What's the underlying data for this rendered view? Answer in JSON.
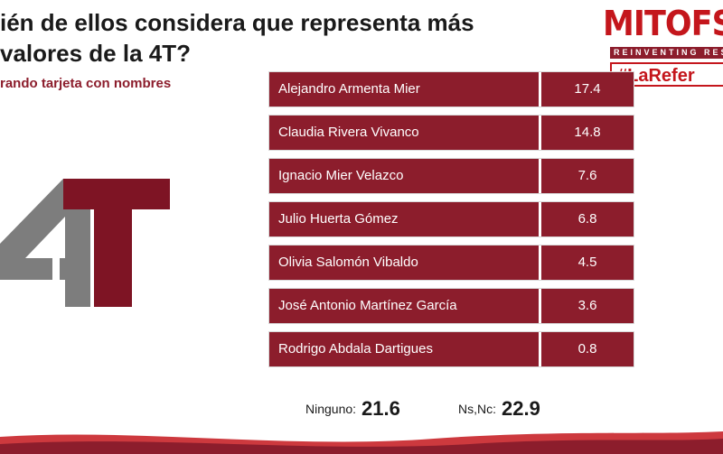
{
  "header": {
    "title_line1": "ién de ellos considera que representa más",
    "title_line2": "valores de la 4T?",
    "subtitle": "rando tarjeta con nombres"
  },
  "logo": {
    "brand": "MITOFS",
    "tagline": "REINVENTING RES",
    "hashtag": "#LaRefer"
  },
  "emblem": {
    "text": "4T",
    "colors": {
      "gray": "#7d7d7d",
      "red": "#7e1424"
    }
  },
  "chart_data": {
    "type": "table",
    "categories": [
      "Alejandro Armenta Mier",
      "Claudia Rivera Vivanco",
      "Ignacio Mier Velazco",
      "Julio Huerta Gómez",
      "Olivia Salomón Vibaldo",
      "José Antonio Martínez García",
      "Rodrigo Abdala Dartigues"
    ],
    "values": [
      "17.4",
      "14.8",
      "7.6",
      "6.8",
      "4.5",
      "3.6",
      "0.8"
    ],
    "extra": [
      {
        "label": "Ninguno:",
        "value": "21.6"
      },
      {
        "label": "Ns,Nc:",
        "value": "22.9"
      }
    ]
  },
  "colors": {
    "accent": "#8c1d2c",
    "brand_red": "#c4161c"
  }
}
